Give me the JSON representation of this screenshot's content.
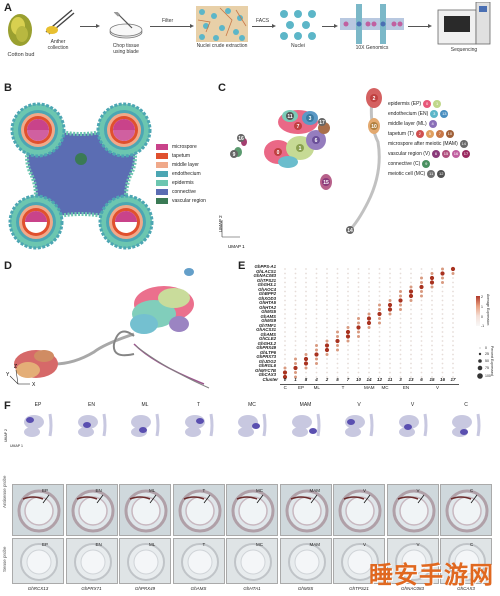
{
  "panel_a": {
    "letter": "A",
    "steps": [
      {
        "label": "Cotton bud"
      },
      {
        "label": "Anther\ncollection"
      },
      {
        "label": "Chop tissue\nusing blade"
      },
      {
        "label": "Nuclei crude extraction"
      },
      {
        "label": "Nuclei"
      },
      {
        "label": "10X Genomics"
      },
      {
        "label": "Sequencing"
      }
    ],
    "arrow_labels": {
      "filter": "Filter",
      "facs": "FACS"
    }
  },
  "panel_b": {
    "letter": "B",
    "legend": [
      {
        "label": "microspore",
        "color": "#c9438a"
      },
      {
        "label": "tapetum",
        "color": "#e0502e"
      },
      {
        "label": "middle layer",
        "color": "#f0a98a"
      },
      {
        "label": "endothecium",
        "color": "#4ca6b3"
      },
      {
        "label": "epidermis",
        "color": "#6cc6b0"
      },
      {
        "label": "connective",
        "color": "#5b6db3"
      },
      {
        "label": "vascular region",
        "color": "#3a7a55"
      }
    ]
  },
  "panel_c": {
    "letter": "C",
    "axis_labels": {
      "x": "UMAP 1",
      "y": "UMAP 2"
    },
    "legend": [
      {
        "label": "epidermis (EP)",
        "clusters": [
          "0",
          "1"
        ],
        "colors": [
          "#e8587a",
          "#c0d78a"
        ]
      },
      {
        "label": "endothecium (EN)",
        "clusters": [
          "3",
          "13"
        ],
        "colors": [
          "#5cb6c8",
          "#4a8fc0"
        ]
      },
      {
        "label": "middle layer (ML)",
        "clusters": [
          "4"
        ],
        "colors": [
          "#8a6fb8"
        ]
      },
      {
        "label": "tapetum (T)",
        "clusters": [
          "2",
          "5",
          "7",
          "10"
        ],
        "colors": [
          "#d05050",
          "#e0a060",
          "#c87848",
          "#a06038"
        ]
      },
      {
        "label": "microspore after meiotic (MAM)",
        "clusters": [
          "14"
        ],
        "colors": [
          "#6a6a6a"
        ]
      },
      {
        "label": "vascular region (V)",
        "clusters": [
          "6",
          "15",
          "16",
          "17"
        ],
        "colors": [
          "#8a3a7a",
          "#b0507e",
          "#c060a0",
          "#9a2a60"
        ]
      },
      {
        "label": "connective (C)",
        "clusters": [
          "9"
        ],
        "colors": [
          "#4a9060"
        ]
      },
      {
        "label": "meiotic cell (MC)",
        "clusters": [
          "11",
          "12"
        ],
        "colors": [
          "#707070",
          "#505050"
        ]
      }
    ],
    "plot_labels": [
      "2",
      "16",
      "9",
      "17",
      "14",
      "3",
      "7",
      "0",
      "15",
      "1",
      "6",
      "11",
      "10"
    ]
  },
  "panel_d": {
    "letter": "D",
    "axis_labels": {
      "x": "X",
      "y": "Y",
      "z": "Z"
    }
  },
  "panel_e": {
    "letter": "E",
    "genes": [
      "GhPPS-A1",
      "GhLACS1",
      "GhNAC083",
      "GhTPS21",
      "GhGH3.1",
      "GhAOC4",
      "GhBPP2",
      "GhXOD3",
      "GhHTA5",
      "GhHTA2",
      "GhMS5",
      "GhAMS",
      "GhMS9",
      "GhTMF1",
      "GhACS31",
      "GhAMS",
      "GhCLE2",
      "GhGH3.2",
      "GhPRX49",
      "GhLTP6",
      "GhPRX73",
      "GhJDG2",
      "GhRGL6",
      "GhMYC7B",
      "GhCAX3"
    ],
    "clusters": [
      "0",
      "1",
      "8",
      "4",
      "2",
      "5",
      "7",
      "10",
      "14",
      "12",
      "11",
      "3",
      "13",
      "6",
      "15",
      "16",
      "17"
    ],
    "cluster_axis_label": "Cluster",
    "groups": [
      {
        "label": "C"
      },
      {
        "label": "EP"
      },
      {
        "label": "ML"
      },
      {
        "label": "T"
      },
      {
        "label": "MAM"
      },
      {
        "label": "MC"
      },
      {
        "label": "EN"
      },
      {
        "label": "V"
      }
    ],
    "legend_titles": {
      "expression": "Average Expression",
      "percent": "Percent Expressed"
    },
    "expression_ticks": [
      "2",
      "1",
      "0",
      "-1"
    ],
    "percent_ticks": [
      "0",
      "25",
      "50",
      "75",
      "100"
    ]
  },
  "panel_f": {
    "letter": "F",
    "columns": [
      {
        "title": "EP",
        "gene": "GhRCX13",
        "label": "EP"
      },
      {
        "title": "EN",
        "gene": "GhPRX71",
        "label": "EN"
      },
      {
        "title": "ML",
        "gene": "GhPRX49",
        "label": "ML"
      },
      {
        "title": "T",
        "gene": "GhAMS",
        "label": "T"
      },
      {
        "title": "MC",
        "gene": "GhHTA1",
        "label": "MC"
      },
      {
        "title": "MAM",
        "gene": "GhMS5",
        "label": "MAM"
      },
      {
        "title": "V",
        "gene": "GhTPS21",
        "label": "V"
      },
      {
        "title": "V",
        "gene": "GhNAC083",
        "label": "V"
      },
      {
        "title": "C",
        "gene": "GhCAX3",
        "label": "C"
      }
    ],
    "row_labels": {
      "antisense": "Antisense probe",
      "sense": "Sense probe"
    },
    "umap_labels": {
      "x": "UMAP 1",
      "y": "UMAP 2"
    }
  },
  "watermark": "睡安手游网"
}
